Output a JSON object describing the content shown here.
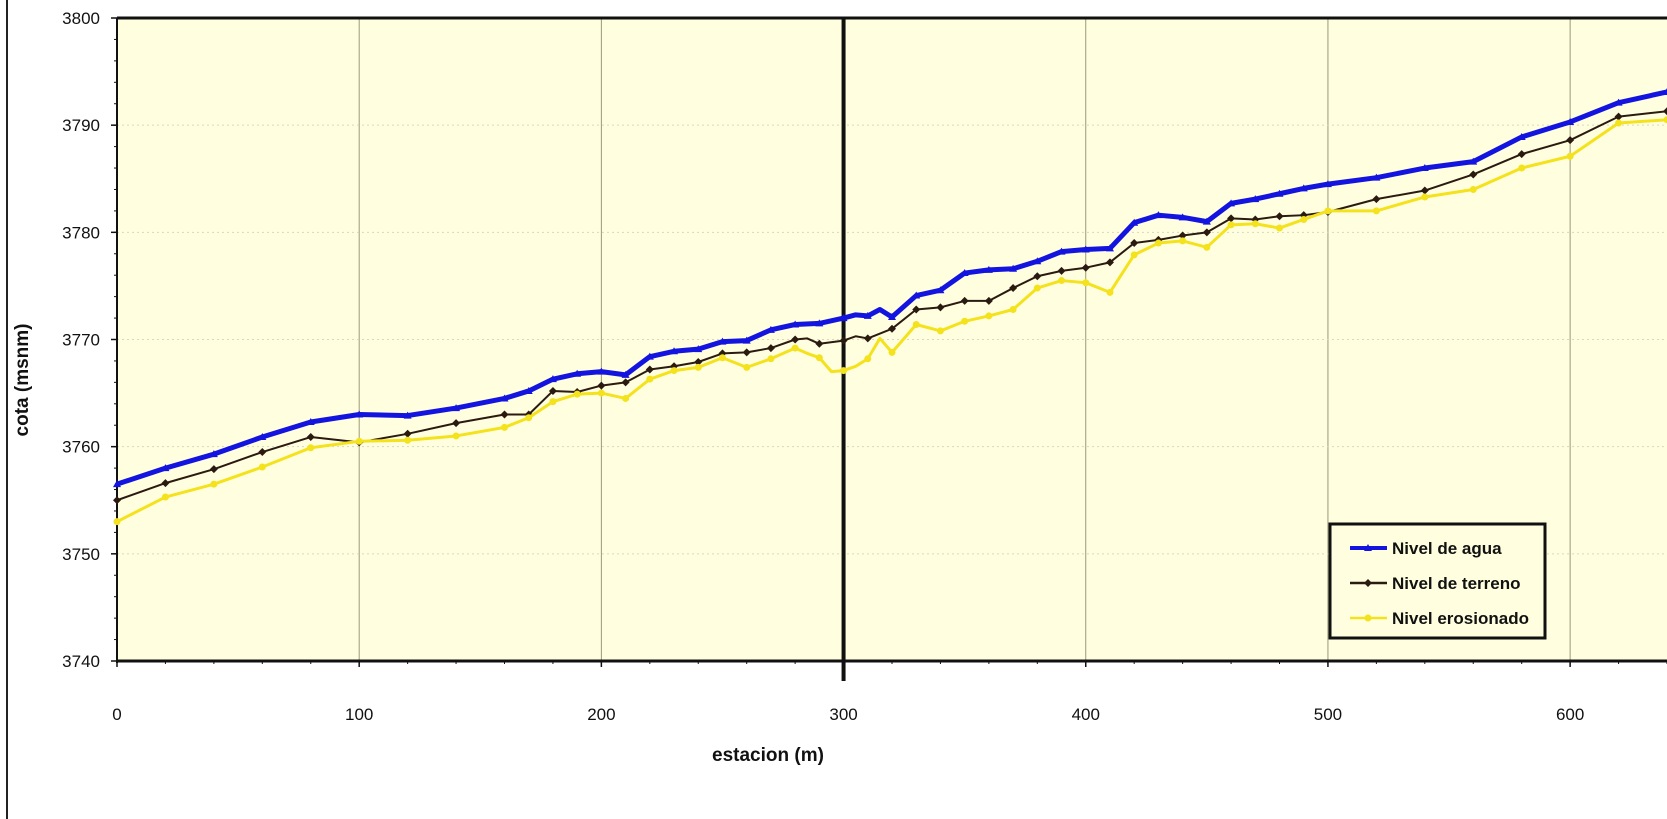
{
  "chart_data": {
    "type": "line",
    "title": "",
    "xlabel": "estacion (m)",
    "ylabel": "cota (msnm)",
    "xlim": [
      0,
      640
    ],
    "ylim": [
      3740,
      3800
    ],
    "xticks": [
      0,
      100,
      200,
      300,
      400,
      500,
      600
    ],
    "yticks": [
      3740,
      3750,
      3760,
      3770,
      3780,
      3790,
      3800
    ],
    "grid": "vertical",
    "legend_position": "bottom-right",
    "reference_line_x": 300,
    "series": [
      {
        "name": "Nivel de agua",
        "color": "#1414e0",
        "marker": "triangle",
        "x": [
          0,
          20,
          40,
          60,
          80,
          100,
          120,
          140,
          160,
          170,
          180,
          190,
          200,
          210,
          220,
          230,
          240,
          250,
          260,
          270,
          280,
          290,
          300,
          305,
          310,
          315,
          320,
          330,
          340,
          350,
          360,
          370,
          380,
          390,
          400,
          410,
          420,
          430,
          440,
          450,
          460,
          470,
          480,
          490,
          500,
          520,
          540,
          560,
          580,
          600,
          620,
          640
        ],
        "y": [
          3756.5,
          3758.0,
          3759.3,
          3760.9,
          3762.3,
          3763.0,
          3762.9,
          3763.6,
          3764.5,
          3765.2,
          3766.3,
          3766.8,
          3767.0,
          3766.7,
          3768.4,
          3768.9,
          3769.1,
          3769.8,
          3769.9,
          3770.9,
          3771.4,
          3771.5,
          3772.0,
          3772.3,
          3772.2,
          3772.8,
          3772.1,
          3774.1,
          3774.6,
          3776.2,
          3776.5,
          3776.6,
          3777.3,
          3778.2,
          3778.4,
          3778.5,
          3780.9,
          3781.6,
          3781.4,
          3781.0,
          3782.7,
          3783.1,
          3783.6,
          3784.1,
          3784.5,
          3785.1,
          3786.0,
          3786.6,
          3788.9,
          3790.3,
          3792.1,
          3793.1
        ]
      },
      {
        "name": "Nivel de terreno",
        "color": "#2b1a10",
        "marker": "diamond",
        "x": [
          0,
          20,
          40,
          60,
          80,
          100,
          120,
          140,
          160,
          170,
          180,
          190,
          200,
          210,
          220,
          230,
          240,
          250,
          260,
          270,
          280,
          285,
          290,
          300,
          305,
          310,
          320,
          330,
          340,
          350,
          360,
          370,
          380,
          390,
          400,
          410,
          420,
          430,
          440,
          450,
          460,
          470,
          480,
          490,
          500,
          520,
          540,
          560,
          580,
          600,
          620,
          640
        ],
        "y": [
          3755.0,
          3756.6,
          3757.9,
          3759.5,
          3760.9,
          3760.4,
          3761.2,
          3762.2,
          3763.0,
          3763.0,
          3765.2,
          3765.1,
          3765.7,
          3766.0,
          3767.2,
          3767.5,
          3767.9,
          3768.7,
          3768.8,
          3769.2,
          3770.0,
          3770.1,
          3769.6,
          3769.9,
          3770.3,
          3770.1,
          3771.0,
          3772.8,
          3773.0,
          3773.6,
          3773.6,
          3774.8,
          3775.9,
          3776.4,
          3776.7,
          3777.2,
          3779.0,
          3779.3,
          3779.7,
          3780.0,
          3781.3,
          3781.2,
          3781.5,
          3781.6,
          3781.9,
          3783.1,
          3783.9,
          3785.4,
          3787.3,
          3788.6,
          3790.8,
          3791.3
        ]
      },
      {
        "name": "Nivel erosionado",
        "color": "#f4e21c",
        "marker": "circle",
        "x": [
          0,
          20,
          40,
          60,
          80,
          100,
          120,
          140,
          160,
          170,
          180,
          190,
          200,
          210,
          220,
          230,
          240,
          250,
          260,
          270,
          280,
          285,
          290,
          295,
          300,
          305,
          310,
          315,
          320,
          330,
          340,
          350,
          360,
          370,
          380,
          390,
          400,
          410,
          420,
          430,
          440,
          450,
          460,
          470,
          480,
          490,
          500,
          520,
          540,
          560,
          580,
          600,
          620,
          640
        ],
        "y": [
          3753.0,
          3755.3,
          3756.5,
          3758.1,
          3759.9,
          3760.5,
          3760.6,
          3761.0,
          3761.8,
          3762.7,
          3764.2,
          3764.9,
          3765.0,
          3764.5,
          3766.3,
          3767.1,
          3767.4,
          3768.3,
          3767.4,
          3768.2,
          3769.2,
          3768.7,
          3768.3,
          3767.0,
          3767.1,
          3767.5,
          3768.2,
          3770.1,
          3768.8,
          3771.4,
          3770.8,
          3771.7,
          3772.2,
          3772.8,
          3774.8,
          3775.5,
          3775.3,
          3774.4,
          3777.9,
          3779.0,
          3779.2,
          3778.6,
          3780.7,
          3780.8,
          3780.4,
          3781.2,
          3782.0,
          3782.0,
          3783.3,
          3784.0,
          3786.0,
          3787.1,
          3790.2,
          3790.5
        ]
      }
    ]
  }
}
